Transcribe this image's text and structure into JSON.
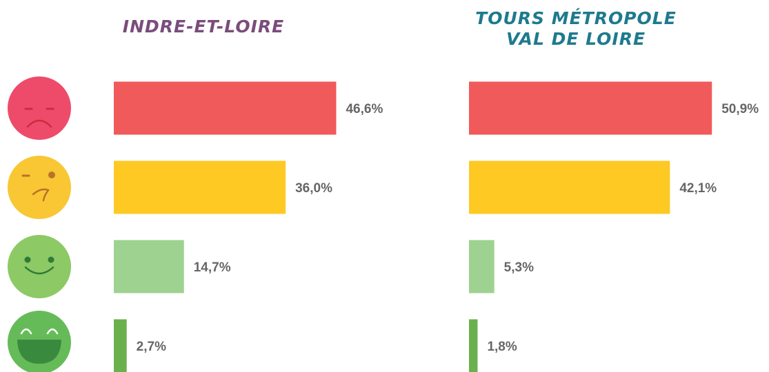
{
  "chart_data": [
    {
      "type": "bar",
      "title": "INDRE-ET-LOIRE",
      "title_color": "#7a4d7c",
      "values": [
        46.6,
        36.0,
        14.7,
        2.7
      ],
      "value_labels": [
        "46,6%",
        "36,0%",
        "14,7%",
        "2,7%"
      ],
      "colors": [
        "#f05a5b",
        "#fdc922",
        "#9ed290",
        "#6ab04d"
      ]
    },
    {
      "type": "bar",
      "title": "TOURS MÉTROPOLE VAL DE LOIRE",
      "title_color": "#1e7a8e",
      "values": [
        50.9,
        42.1,
        5.3,
        1.8
      ],
      "value_labels": [
        "50,9%",
        "42,1%",
        "5,3%",
        "1,8%"
      ],
      "colors": [
        "#f05a5b",
        "#fdc922",
        "#9ed290",
        "#6ab04d"
      ]
    }
  ]
}
